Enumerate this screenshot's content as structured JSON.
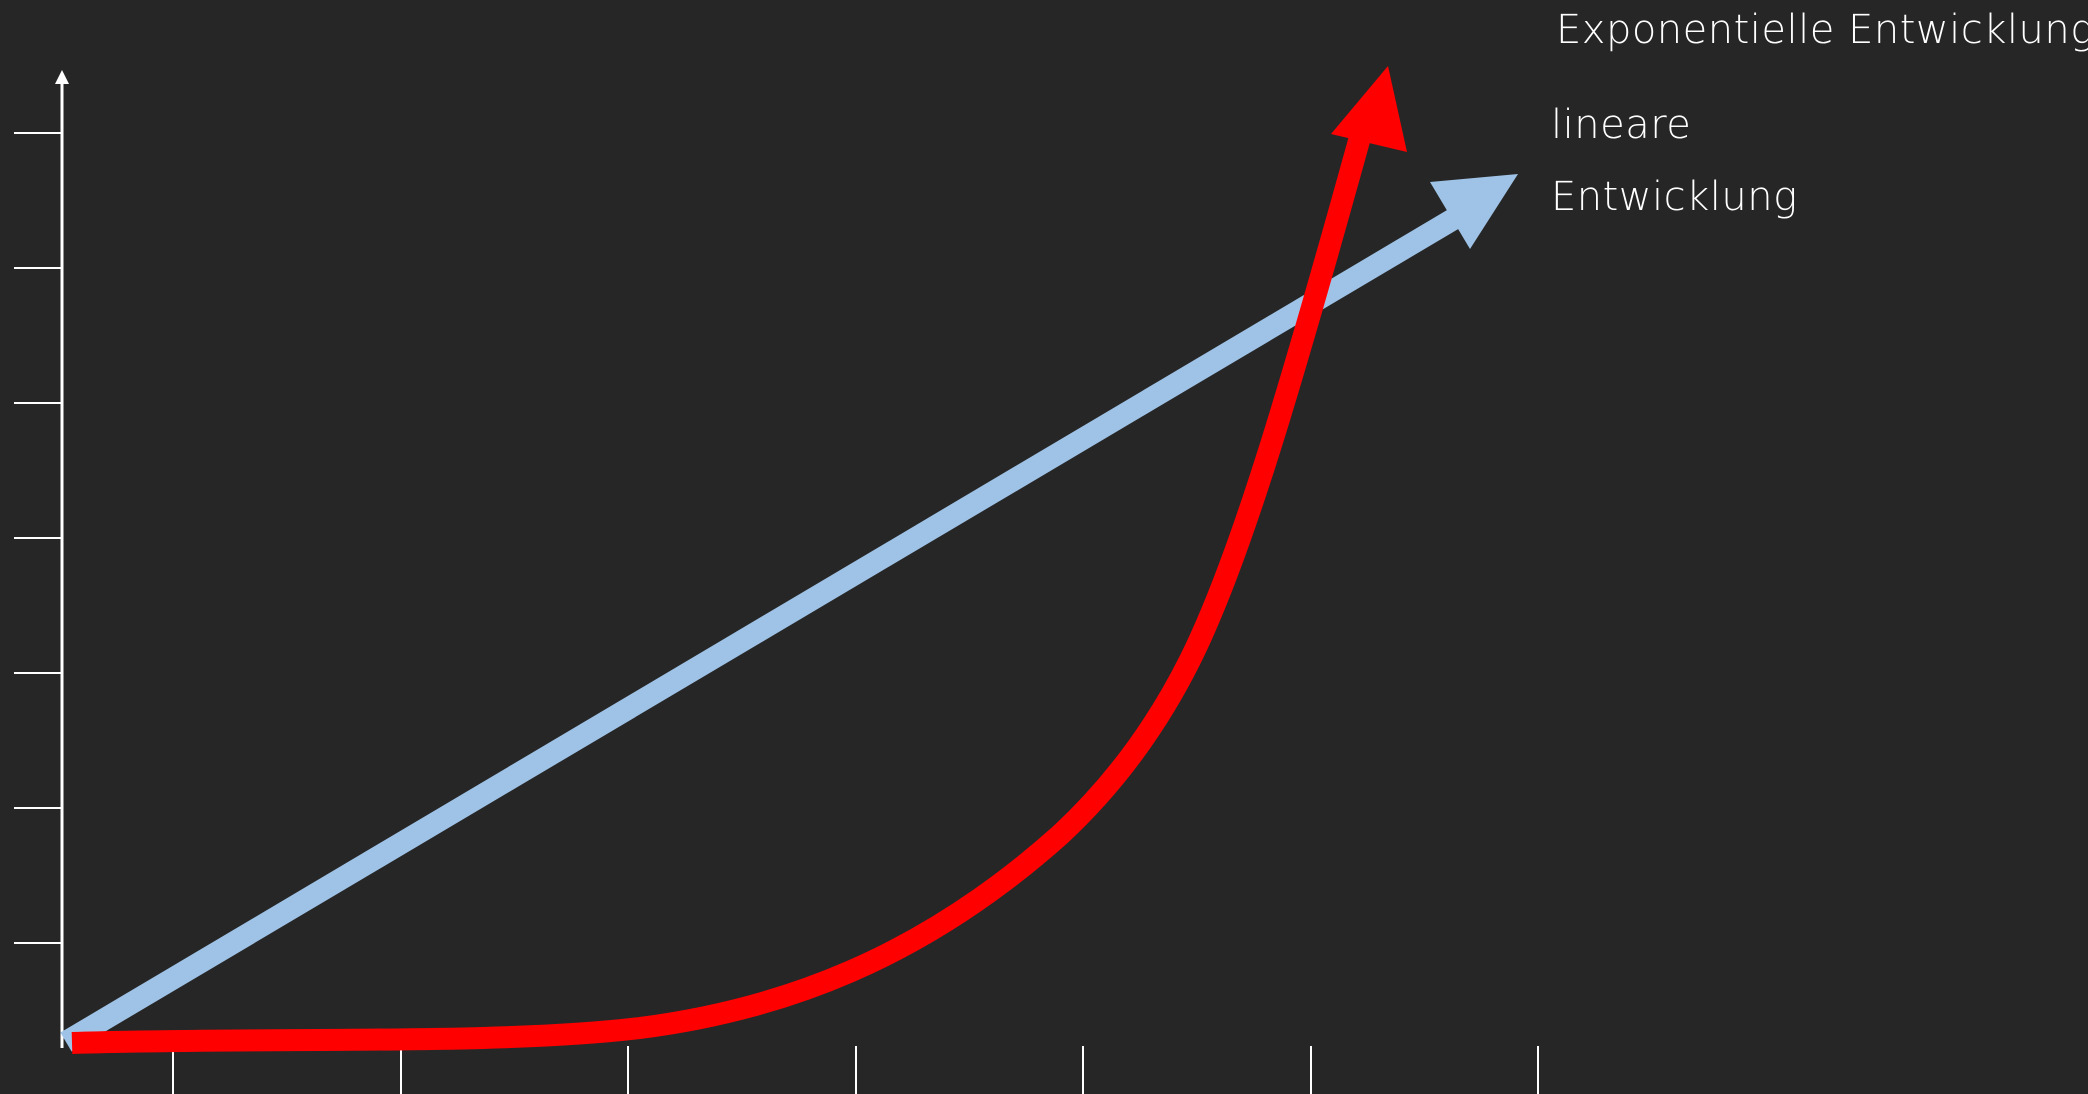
{
  "labels": {
    "exponential": "Exponentielle Entwicklung",
    "linear_line1": "lineare",
    "linear_line2": "Entwicklung"
  },
  "colors": {
    "background": "#262626",
    "axis": "#ffffff",
    "linear_arrow": "#9fc3e7",
    "exponential_arrow": "#ff0000",
    "text": "#ffffff"
  },
  "axes": {
    "y_tick_count": 7,
    "x_tick_count": 7
  }
}
